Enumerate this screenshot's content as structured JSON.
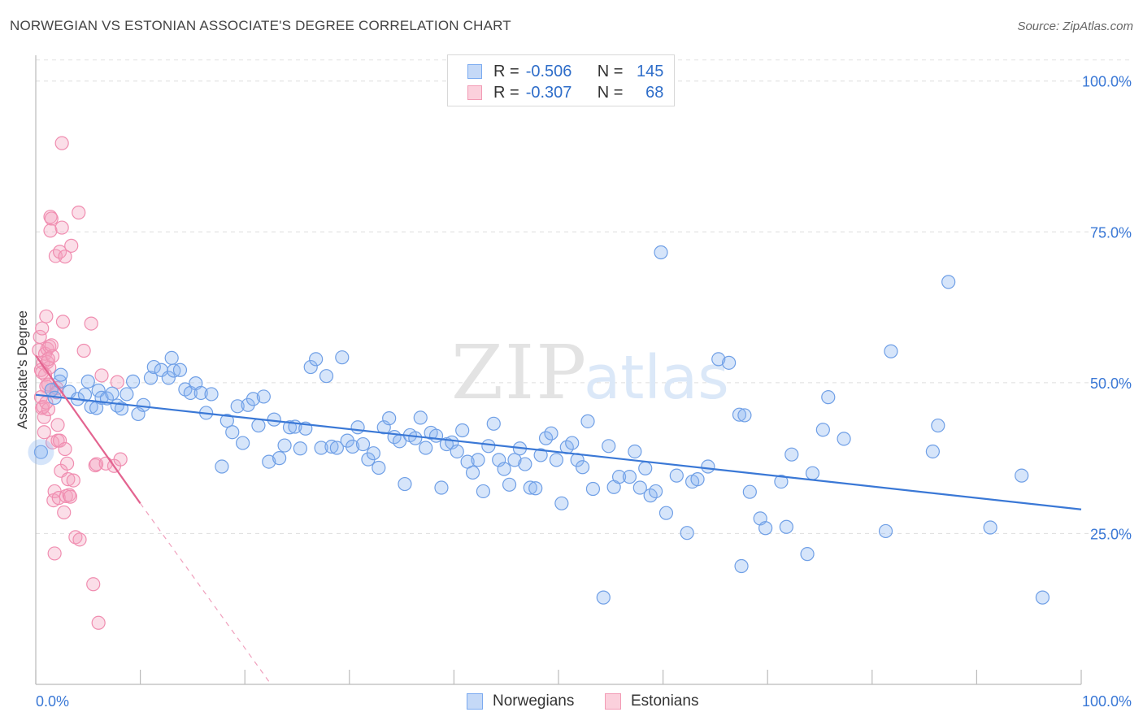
{
  "title": "NORWEGIAN VS ESTONIAN ASSOCIATE'S DEGREE CORRELATION CHART",
  "source": "Source: ZipAtlas.com",
  "watermark": {
    "zip": "ZIP",
    "atlas": "atlas"
  },
  "legend": {
    "rows": [
      {
        "r_label": "R =",
        "r_value": "-0.506",
        "n_label": "N =",
        "n_value": "145",
        "color": "#7aaaf0",
        "fill": "#c5d9f7"
      },
      {
        "r_label": "R =",
        "r_value": "-0.307",
        "n_label": "N =",
        "n_value": "68",
        "color": "#f29bb5",
        "fill": "#fbd0dc"
      }
    ]
  },
  "bottom_legend": [
    {
      "label": "Norwegians",
      "color": "#7aaaf0",
      "fill": "#c5d9f7"
    },
    {
      "label": "Estonians",
      "color": "#f29bb5",
      "fill": "#fbd0dc"
    }
  ],
  "chart_data": {
    "type": "scatter",
    "ylabel": "Associate's Degree",
    "xlim": [
      0,
      100
    ],
    "ylim": [
      0,
      104
    ],
    "x_tick_labels": [
      "0.0%",
      "100.0%"
    ],
    "y_ticks": [
      {
        "value": 25,
        "label": "25.0%"
      },
      {
        "value": 50,
        "label": "50.0%"
      },
      {
        "value": 75,
        "label": "75.0%"
      },
      {
        "value": 100,
        "label": "100.0%"
      }
    ],
    "grid": "horizontal dashed",
    "series": [
      {
        "name": "Norwegians",
        "color": "#3a78d6",
        "point_fill": "rgba(138,180,240,0.35)",
        "point_stroke": "#6f9fe6",
        "trend": {
          "x": [
            0,
            100
          ],
          "y": [
            48.0,
            29.0
          ],
          "style": "solid"
        },
        "points": [
          [
            0.5,
            38.5
          ],
          [
            1.5,
            48.8
          ],
          [
            1.8,
            47.5
          ],
          [
            2.3,
            50.2
          ],
          [
            2.4,
            51.3
          ],
          [
            3.2,
            48.5
          ],
          [
            4.0,
            47.3
          ],
          [
            4.7,
            48.0
          ],
          [
            5.0,
            50.2
          ],
          [
            5.3,
            46.0
          ],
          [
            5.8,
            45.8
          ],
          [
            6.0,
            48.7
          ],
          [
            6.3,
            47.5
          ],
          [
            6.8,
            47.4
          ],
          [
            7.3,
            48.2
          ],
          [
            7.8,
            46.2
          ],
          [
            8.2,
            45.7
          ],
          [
            8.7,
            48.1
          ],
          [
            9.3,
            50.2
          ],
          [
            9.8,
            44.8
          ],
          [
            10.3,
            46.3
          ],
          [
            11.0,
            50.8
          ],
          [
            11.3,
            52.6
          ],
          [
            12.0,
            52.1
          ],
          [
            12.7,
            50.8
          ],
          [
            13.0,
            54.1
          ],
          [
            13.2,
            52.0
          ],
          [
            13.8,
            52.1
          ],
          [
            14.3,
            48.9
          ],
          [
            14.8,
            48.3
          ],
          [
            15.3,
            49.9
          ],
          [
            15.8,
            48.3
          ],
          [
            16.3,
            45.0
          ],
          [
            16.8,
            48.1
          ],
          [
            17.8,
            36.1
          ],
          [
            18.3,
            43.7
          ],
          [
            18.8,
            41.8
          ],
          [
            19.3,
            46.1
          ],
          [
            19.8,
            40.0
          ],
          [
            20.3,
            46.3
          ],
          [
            20.8,
            47.3
          ],
          [
            21.3,
            42.9
          ],
          [
            21.8,
            47.7
          ],
          [
            22.3,
            36.9
          ],
          [
            22.8,
            43.9
          ],
          [
            23.3,
            37.5
          ],
          [
            23.8,
            39.6
          ],
          [
            24.3,
            42.6
          ],
          [
            24.8,
            42.7
          ],
          [
            25.3,
            39.1
          ],
          [
            25.8,
            42.4
          ],
          [
            26.3,
            52.6
          ],
          [
            26.8,
            53.9
          ],
          [
            27.3,
            39.2
          ],
          [
            27.8,
            51.1
          ],
          [
            28.3,
            39.4
          ],
          [
            28.8,
            39.2
          ],
          [
            29.3,
            54.2
          ],
          [
            29.8,
            40.4
          ],
          [
            30.3,
            39.4
          ],
          [
            30.8,
            42.6
          ],
          [
            31.3,
            39.8
          ],
          [
            31.8,
            37.3
          ],
          [
            32.3,
            38.3
          ],
          [
            32.8,
            35.9
          ],
          [
            33.3,
            42.6
          ],
          [
            33.8,
            44.1
          ],
          [
            34.3,
            41.0
          ],
          [
            34.8,
            40.3
          ],
          [
            35.3,
            33.2
          ],
          [
            35.8,
            41.3
          ],
          [
            36.3,
            40.8
          ],
          [
            36.8,
            44.2
          ],
          [
            37.3,
            39.2
          ],
          [
            37.8,
            41.7
          ],
          [
            38.3,
            41.2
          ],
          [
            38.8,
            32.6
          ],
          [
            39.3,
            39.8
          ],
          [
            39.8,
            40.1
          ],
          [
            40.3,
            38.6
          ],
          [
            40.8,
            42.1
          ],
          [
            41.3,
            36.9
          ],
          [
            41.8,
            35.1
          ],
          [
            42.3,
            37.2
          ],
          [
            42.8,
            32.0
          ],
          [
            43.3,
            39.5
          ],
          [
            43.8,
            43.2
          ],
          [
            44.3,
            37.2
          ],
          [
            44.8,
            35.7
          ],
          [
            45.3,
            33.1
          ],
          [
            45.8,
            37.2
          ],
          [
            46.3,
            39.1
          ],
          [
            46.8,
            36.5
          ],
          [
            47.3,
            32.6
          ],
          [
            47.8,
            32.5
          ],
          [
            48.3,
            38.0
          ],
          [
            48.8,
            40.8
          ],
          [
            49.3,
            41.6
          ],
          [
            49.8,
            37.2
          ],
          [
            50.3,
            30.0
          ],
          [
            50.8,
            39.3
          ],
          [
            51.3,
            40.0
          ],
          [
            51.8,
            37.2
          ],
          [
            52.3,
            36.0
          ],
          [
            52.8,
            43.6
          ],
          [
            53.3,
            32.4
          ],
          [
            54.3,
            14.4
          ],
          [
            54.8,
            39.5
          ],
          [
            55.3,
            32.7
          ],
          [
            55.8,
            34.4
          ],
          [
            56.8,
            34.4
          ],
          [
            57.3,
            38.6
          ],
          [
            57.8,
            32.6
          ],
          [
            58.3,
            35.8
          ],
          [
            58.8,
            31.3
          ],
          [
            59.3,
            32.0
          ],
          [
            59.8,
            71.6
          ],
          [
            60.3,
            28.4
          ],
          [
            61.3,
            34.6
          ],
          [
            62.3,
            25.1
          ],
          [
            62.8,
            33.6
          ],
          [
            63.3,
            34.0
          ],
          [
            64.3,
            36.1
          ],
          [
            65.3,
            53.9
          ],
          [
            66.3,
            53.3
          ],
          [
            67.3,
            44.7
          ],
          [
            67.8,
            44.6
          ],
          [
            68.3,
            31.9
          ],
          [
            69.3,
            27.5
          ],
          [
            69.8,
            25.9
          ],
          [
            71.3,
            33.6
          ],
          [
            71.8,
            26.1
          ],
          [
            72.3,
            38.1
          ],
          [
            73.8,
            21.6
          ],
          [
            74.3,
            35.0
          ],
          [
            75.3,
            42.2
          ],
          [
            75.8,
            47.6
          ],
          [
            77.3,
            40.7
          ],
          [
            67.5,
            19.6
          ],
          [
            81.3,
            25.4
          ],
          [
            81.8,
            55.2
          ],
          [
            85.8,
            38.6
          ],
          [
            86.3,
            42.9
          ],
          [
            87.3,
            66.7
          ],
          [
            91.3,
            26.0
          ],
          [
            94.3,
            34.6
          ],
          [
            96.3,
            14.4
          ]
        ]
      },
      {
        "name": "Estonians",
        "color": "#e36490",
        "point_fill": "rgba(244,160,188,0.35)",
        "point_stroke": "#f08db0",
        "trend": {
          "x": [
            0,
            10
          ],
          "y": [
            54.5,
            30.0
          ],
          "style": "solid",
          "extension": {
            "x": [
              10,
              22.5
            ],
            "y": [
              30.0,
              0.0
            ],
            "style": "dashed"
          }
        },
        "points": [
          [
            0.3,
            55.4
          ],
          [
            0.4,
            57.6
          ],
          [
            0.5,
            52.1
          ],
          [
            0.5,
            47.6
          ],
          [
            0.6,
            45.8
          ],
          [
            0.6,
            59.0
          ],
          [
            0.7,
            53.3
          ],
          [
            0.7,
            46.0
          ],
          [
            0.8,
            44.3
          ],
          [
            0.8,
            41.8
          ],
          [
            0.9,
            51.3
          ],
          [
            0.9,
            54.8
          ],
          [
            1.0,
            61.0
          ],
          [
            1.0,
            49.4
          ],
          [
            1.1,
            55.6
          ],
          [
            1.1,
            53.4
          ],
          [
            1.2,
            49.7
          ],
          [
            1.2,
            45.6
          ],
          [
            1.3,
            56.0
          ],
          [
            1.3,
            52.5
          ],
          [
            1.4,
            75.2
          ],
          [
            1.4,
            77.5
          ],
          [
            1.5,
            77.2
          ],
          [
            1.5,
            56.2
          ],
          [
            1.6,
            54.4
          ],
          [
            1.6,
            40.1
          ],
          [
            1.7,
            30.5
          ],
          [
            1.8,
            32.0
          ],
          [
            1.8,
            21.7
          ],
          [
            1.9,
            71.0
          ],
          [
            2.0,
            49.1
          ],
          [
            2.1,
            43.0
          ],
          [
            2.1,
            40.4
          ],
          [
            2.2,
            30.9
          ],
          [
            2.3,
            71.7
          ],
          [
            2.3,
            40.4
          ],
          [
            2.4,
            35.4
          ],
          [
            2.5,
            89.7
          ],
          [
            2.5,
            75.7
          ],
          [
            2.6,
            60.1
          ],
          [
            2.7,
            28.5
          ],
          [
            2.8,
            70.9
          ],
          [
            2.8,
            39.0
          ],
          [
            2.9,
            31.2
          ],
          [
            3.0,
            36.6
          ],
          [
            3.1,
            34.0
          ],
          [
            3.2,
            31.4
          ],
          [
            3.3,
            31.1
          ],
          [
            3.4,
            72.7
          ],
          [
            3.6,
            33.8
          ],
          [
            3.8,
            24.4
          ],
          [
            4.1,
            78.2
          ],
          [
            4.2,
            24.0
          ],
          [
            4.6,
            55.3
          ],
          [
            5.3,
            59.8
          ],
          [
            5.5,
            16.6
          ],
          [
            5.7,
            36.3
          ],
          [
            5.8,
            36.5
          ],
          [
            6.0,
            10.2
          ],
          [
            6.3,
            51.2
          ],
          [
            6.7,
            36.6
          ],
          [
            7.5,
            36.2
          ],
          [
            7.8,
            50.1
          ],
          [
            8.1,
            37.3
          ],
          [
            0.6,
            51.7
          ],
          [
            1.0,
            46.7
          ],
          [
            2.0,
            48.4
          ],
          [
            1.2,
            53.9
          ]
        ]
      }
    ]
  }
}
